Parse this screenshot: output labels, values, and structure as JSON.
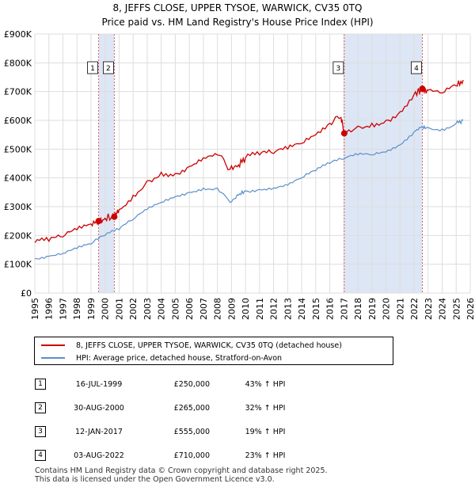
{
  "title": {
    "line1": "8, JEFFS CLOSE, UPPER TYSOE, WARWICK, CV35 0TQ",
    "line2": "Price paid vs. HM Land Registry's House Price Index (HPI)"
  },
  "colors": {
    "property": "#cc0000",
    "hpi": "#5b8fc9",
    "shade": "#dde6f5",
    "marker_line": "#e06060",
    "grid": "#dddddd"
  },
  "legend": {
    "property_label": "8, JEFFS CLOSE, UPPER TYSOE, WARWICK, CV35 0TQ (detached house)",
    "hpi_label": "HPI: Average price, detached house, Stratford-on-Avon"
  },
  "transactions": [
    {
      "num": "1",
      "date": "16-JUL-1999",
      "price": "£250,000",
      "hpi": "43% ↑ HPI"
    },
    {
      "num": "2",
      "date": "30-AUG-2000",
      "price": "£265,000",
      "hpi": "32% ↑ HPI"
    },
    {
      "num": "3",
      "date": "12-JAN-2017",
      "price": "£555,000",
      "hpi": "19% ↑ HPI"
    },
    {
      "num": "4",
      "date": "03-AUG-2022",
      "price": "£710,000",
      "hpi": "23% ↑ HPI"
    }
  ],
  "footer": {
    "line1": "Contains HM Land Registry data © Crown copyright and database right 2025.",
    "line2": "This data is licensed under the Open Government Licence v3.0."
  },
  "chart_data": {
    "type": "line",
    "title": "8, JEFFS CLOSE, UPPER TYSOE, WARWICK, CV35 0TQ",
    "subtitle": "Price paid vs. HM Land Registry's House Price Index (HPI)",
    "xlim": [
      1995,
      2026
    ],
    "ylim": [
      0,
      900000
    ],
    "x_ticks": [
      1995,
      1996,
      1997,
      1998,
      1999,
      2000,
      2001,
      2002,
      2003,
      2004,
      2005,
      2006,
      2007,
      2008,
      2009,
      2010,
      2011,
      2012,
      2013,
      2014,
      2015,
      2016,
      2017,
      2018,
      2019,
      2020,
      2021,
      2022,
      2023,
      2024,
      2025,
      2026
    ],
    "y_ticks": [
      {
        "value": 0,
        "label": "£0"
      },
      {
        "value": 100000,
        "label": "£100K"
      },
      {
        "value": 200000,
        "label": "£200K"
      },
      {
        "value": 300000,
        "label": "£300K"
      },
      {
        "value": 400000,
        "label": "£400K"
      },
      {
        "value": 500000,
        "label": "£500K"
      },
      {
        "value": 600000,
        "label": "£600K"
      },
      {
        "value": 700000,
        "label": "£700K"
      },
      {
        "value": 800000,
        "label": "£800K"
      },
      {
        "value": 900000,
        "label": "£900K"
      }
    ],
    "shaded_spans": [
      [
        1999.54,
        2000.66
      ],
      [
        2017.03,
        2022.59
      ]
    ],
    "sales": [
      {
        "label": "1",
        "x": 1999.54,
        "y": 250000
      },
      {
        "label": "2",
        "x": 2000.66,
        "y": 265000
      },
      {
        "label": "3",
        "x": 2017.03,
        "y": 555000
      },
      {
        "label": "4",
        "x": 2022.59,
        "y": 710000
      }
    ],
    "series": [
      {
        "name": "8, JEFFS CLOSE, UPPER TYSOE, WARWICK, CV35 0TQ (detached house)",
        "x": [
          1995,
          1996,
          1997,
          1998,
          1999,
          1999.54,
          2000,
          2000.66,
          2001,
          2002,
          2003,
          2004,
          2005,
          2006,
          2007,
          2008,
          2008.9,
          2009.5,
          2010,
          2011,
          2012,
          2013,
          2014,
          2015,
          2016,
          2016.8,
          2017.03,
          2018,
          2019,
          2020,
          2021,
          2022,
          2022.59,
          2023,
          2024,
          2025,
          2025.5
        ],
        "y": [
          175000,
          180000,
          195000,
          220000,
          240000,
          250000,
          260000,
          265000,
          290000,
          340000,
          390000,
          420000,
          415000,
          440000,
          470000,
          480000,
          430000,
          445000,
          470000,
          480000,
          485000,
          500000,
          520000,
          550000,
          590000,
          610000,
          555000,
          580000,
          590000,
          600000,
          630000,
          690000,
          710000,
          705000,
          695000,
          720000,
          740000
        ]
      },
      {
        "name": "HPI: Average price, detached house, Stratford-on-Avon",
        "x": [
          1995,
          1996,
          1997,
          1998,
          1999,
          2000,
          2001,
          2002,
          2003,
          2004,
          2005,
          2006,
          2007,
          2008,
          2008.9,
          2009.5,
          2010,
          2011,
          2012,
          2013,
          2014,
          2015,
          2016,
          2017,
          2018,
          2019,
          2020,
          2021,
          2022,
          2022.59,
          2023,
          2024,
          2025,
          2025.5
        ],
        "y": [
          120000,
          128000,
          138000,
          155000,
          170000,
          200000,
          220000,
          255000,
          290000,
          315000,
          335000,
          350000,
          365000,
          365000,
          315000,
          340000,
          355000,
          360000,
          365000,
          375000,
          400000,
          425000,
          450000,
          465000,
          480000,
          480000,
          490000,
          515000,
          560000,
          580000,
          575000,
          570000,
          590000,
          600000
        ]
      }
    ]
  }
}
